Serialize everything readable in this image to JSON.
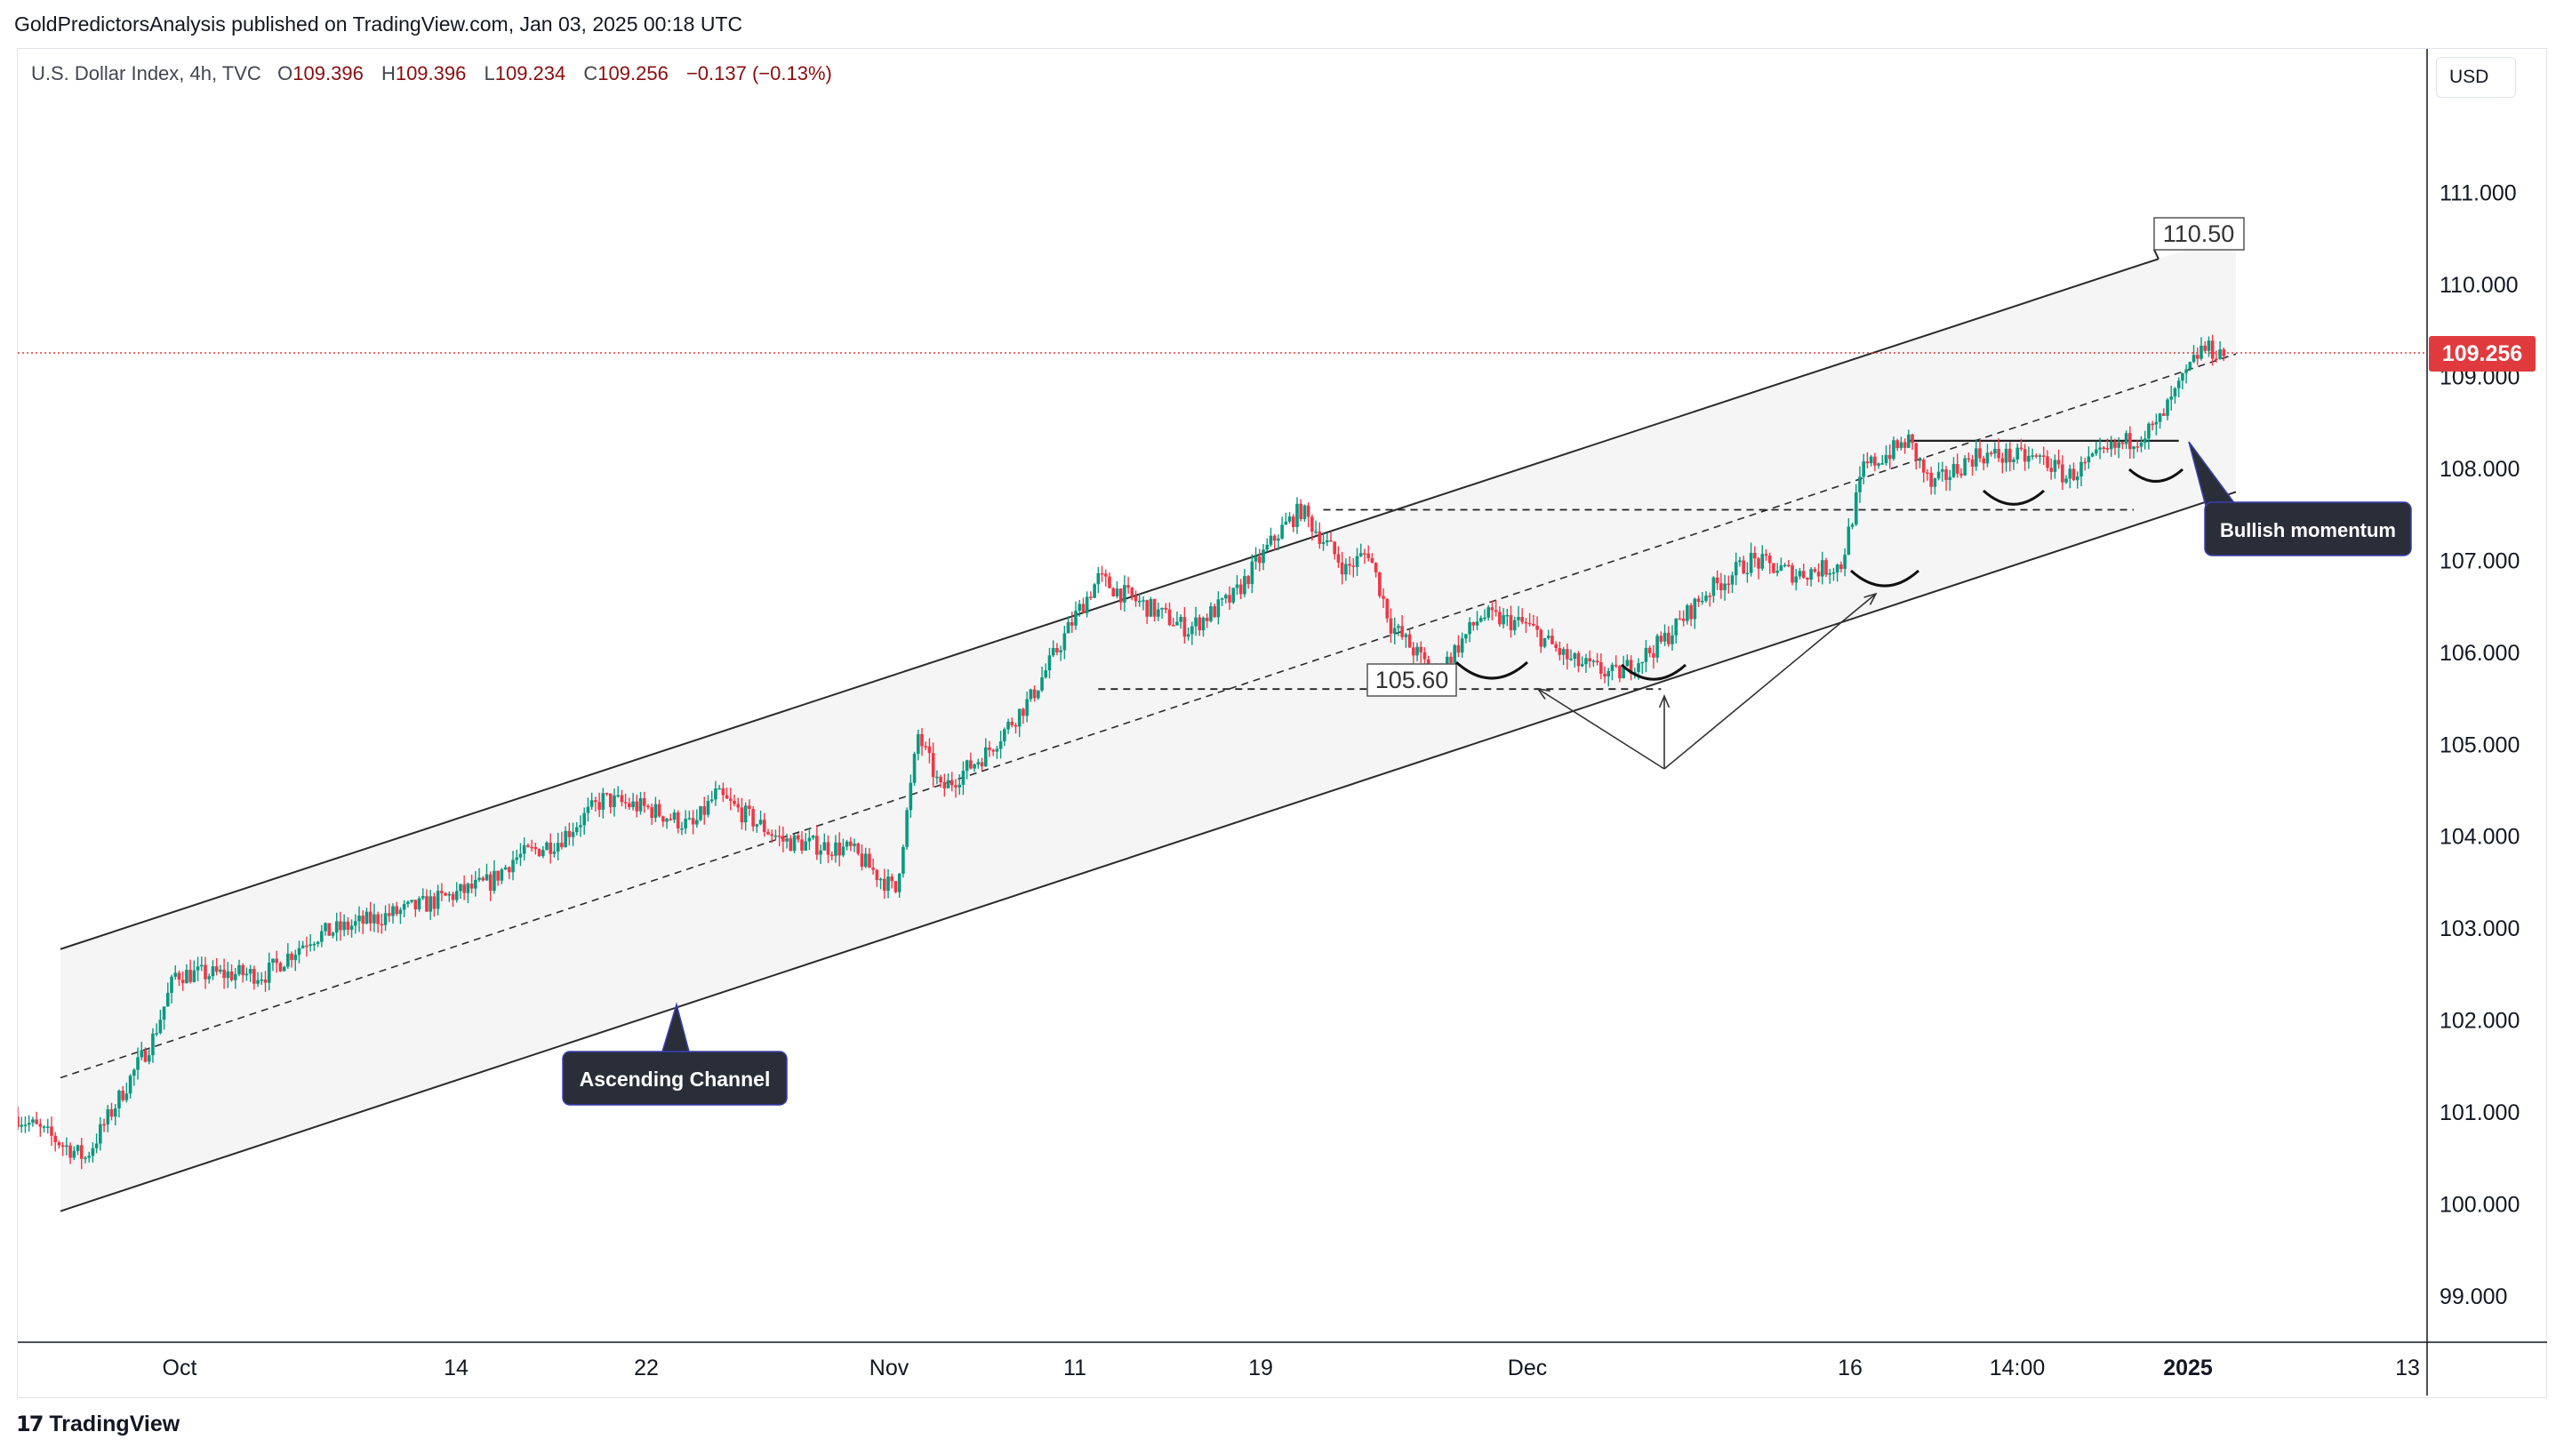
{
  "header": {
    "published_line": "GoldPredictorsAnalysis published on TradingView.com, Jan 03, 2025 00:18 UTC"
  },
  "legend": {
    "symbol": "U.S. Dollar Index, 4h, TVC",
    "open_label": "O",
    "open": "109.396",
    "high_label": "H",
    "high": "109.396",
    "low_label": "L",
    "low": "109.234",
    "close_label": "C",
    "close": "109.256",
    "change": "−0.137 (−0.13%)"
  },
  "currency_button": "USD",
  "last_price_tag": "109.256",
  "footer": {
    "brand": "TradingView"
  },
  "colors": {
    "up": "#089981",
    "down": "#f23645",
    "channel_fill": "#f5f5f5",
    "price_line": "#e03a3e",
    "callout_bg": "#2a2e39"
  },
  "chart_data": {
    "type": "candlestick",
    "y_axis_ticks": [
      "99.000",
      "100.000",
      "101.000",
      "102.000",
      "103.000",
      "104.000",
      "105.000",
      "106.000",
      "107.000",
      "108.000",
      "109.000",
      "110.000",
      "111.000"
    ],
    "ylim": [
      98.4,
      112.2
    ],
    "x_axis_ticks": [
      "Oct",
      "14",
      "22",
      "Nov",
      "11",
      "19",
      "Dec",
      "16",
      "14:00",
      "2025",
      "13"
    ],
    "x_axis_bold": "2025",
    "anchors": [
      {
        "date": "2024-09-27",
        "close": 100.95
      },
      {
        "date": "2024-09-30",
        "close": 100.5
      },
      {
        "date": "2024-10-03",
        "close": 101.8
      },
      {
        "date": "2024-10-04",
        "close": 102.5
      },
      {
        "date": "2024-10-08",
        "close": 102.5
      },
      {
        "date": "2024-10-10",
        "close": 102.9
      },
      {
        "date": "2024-10-15",
        "close": 103.25
      },
      {
        "date": "2024-10-18",
        "close": 103.5
      },
      {
        "date": "2024-10-19",
        "close": 103.75
      },
      {
        "date": "2024-10-21",
        "close": 103.95
      },
      {
        "date": "2024-10-23",
        "close": 104.4
      },
      {
        "date": "2024-10-25",
        "close": 104.3
      },
      {
        "date": "2024-10-27",
        "close": 104.1
      },
      {
        "date": "2024-10-28",
        "close": 104.45
      },
      {
        "date": "2024-10-31",
        "close": 103.95
      },
      {
        "date": "2024-11-03",
        "close": 103.85
      },
      {
        "date": "2024-11-05",
        "close": 103.4
      },
      {
        "date": "2024-11-06",
        "close": 105.1
      },
      {
        "date": "2024-11-07",
        "close": 104.5
      },
      {
        "date": "2024-11-09",
        "close": 104.9
      },
      {
        "date": "2024-11-11",
        "close": 105.5
      },
      {
        "date": "2024-11-13",
        "close": 106.4
      },
      {
        "date": "2024-11-14",
        "close": 106.8
      },
      {
        "date": "2024-11-15",
        "close": 106.65
      },
      {
        "date": "2024-11-18",
        "close": 106.25
      },
      {
        "date": "2024-11-20",
        "close": 106.6
      },
      {
        "date": "2024-11-22",
        "close": 107.3
      },
      {
        "date": "2024-11-23",
        "close": 107.55
      },
      {
        "date": "2024-11-25",
        "close": 106.9
      },
      {
        "date": "2024-11-26",
        "close": 107.1
      },
      {
        "date": "2024-11-27",
        "close": 106.3
      },
      {
        "date": "2024-11-29",
        "close": 105.75
      },
      {
        "date": "2024-12-01",
        "close": 106.4
      },
      {
        "date": "2024-12-03",
        "close": 106.3
      },
      {
        "date": "2024-12-05",
        "close": 105.9
      },
      {
        "date": "2024-12-07",
        "close": 105.75
      },
      {
        "date": "2024-12-09",
        "close": 106.1
      },
      {
        "date": "2024-12-11",
        "close": 106.65
      },
      {
        "date": "2024-12-13",
        "close": 107.0
      },
      {
        "date": "2024-12-15",
        "close": 106.85
      },
      {
        "date": "2024-12-17",
        "close": 106.95
      },
      {
        "date": "2024-12-18",
        "close": 108.0
      },
      {
        "date": "2024-12-20",
        "close": 108.3
      },
      {
        "date": "2024-12-21",
        "close": 107.8
      },
      {
        "date": "2024-12-23",
        "close": 108.15
      },
      {
        "date": "2024-12-26",
        "close": 108.1
      },
      {
        "date": "2024-12-27",
        "close": 107.9
      },
      {
        "date": "2024-12-29",
        "close": 108.2
      },
      {
        "date": "2024-12-31",
        "close": 108.45
      },
      {
        "date": "2025-01-02",
        "close": 109.3
      },
      {
        "date": "2025-01-03",
        "close": 109.26
      }
    ],
    "channel": {
      "upper": [
        {
          "date": "2024-09-28",
          "price": 102.7
        },
        {
          "date": "2025-01-01",
          "price": 110.35
        }
      ],
      "lower": [
        {
          "date": "2024-09-28",
          "price": 99.85
        },
        {
          "date": "2025-01-03",
          "price": 107.7
        }
      ],
      "mid": [
        {
          "date": "2024-09-28",
          "price": 101.3
        },
        {
          "date": "2025-01-03",
          "price": 109.2
        }
      ]
    },
    "levels": [
      {
        "price": 105.6,
        "from": "2024-11-14",
        "to": "2024-12-09"
      },
      {
        "price": 107.55,
        "from": "2024-11-24",
        "to": "2024-12-30"
      },
      {
        "price": 108.3,
        "from": "2024-12-20",
        "to": "2025-01-01"
      }
    ],
    "labels": {
      "top_level": "110.50",
      "support_level": "105.60",
      "channel_callout": "Ascending Channel",
      "momentum_callout": "Bullish momentum"
    }
  }
}
